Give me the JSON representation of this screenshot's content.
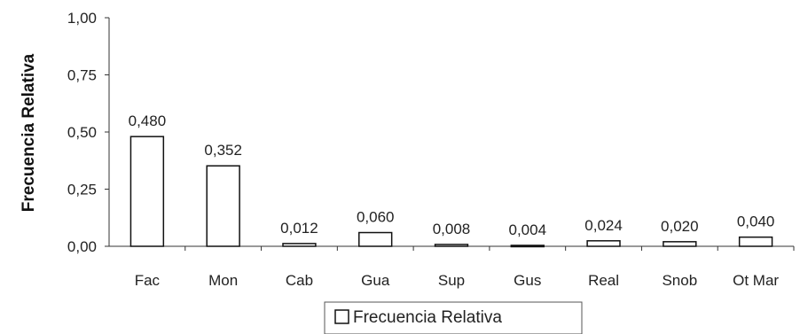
{
  "chart_data": {
    "type": "bar",
    "title": "",
    "xlabel": "",
    "ylabel": "Frecuencia Relativa",
    "ylim": [
      0,
      1
    ],
    "yticks": [
      "0,00",
      "0,25",
      "0,50",
      "0,75",
      "1,00"
    ],
    "ytick_values": [
      0,
      0.25,
      0.5,
      0.75,
      1.0
    ],
    "categories": [
      "Fac",
      "Mon",
      "Cab",
      "Gua",
      "Sup",
      "Gus",
      "Real",
      "Snob",
      "Ot Mar"
    ],
    "series": [
      {
        "name": "Frecuencia Relativa",
        "values": [
          0.48,
          0.352,
          0.012,
          0.06,
          0.008,
          0.004,
          0.024,
          0.02,
          0.04
        ],
        "labels": [
          "0,480",
          "0,352",
          "0,012",
          "0,060",
          "0,008",
          "0,004",
          "0,024",
          "0,020",
          "0,040"
        ]
      }
    ],
    "grid": false,
    "legend": "bottom",
    "colors": {
      "bar_fill": "#ffffff",
      "bar_stroke": "#111111",
      "axis": "#333333"
    }
  }
}
